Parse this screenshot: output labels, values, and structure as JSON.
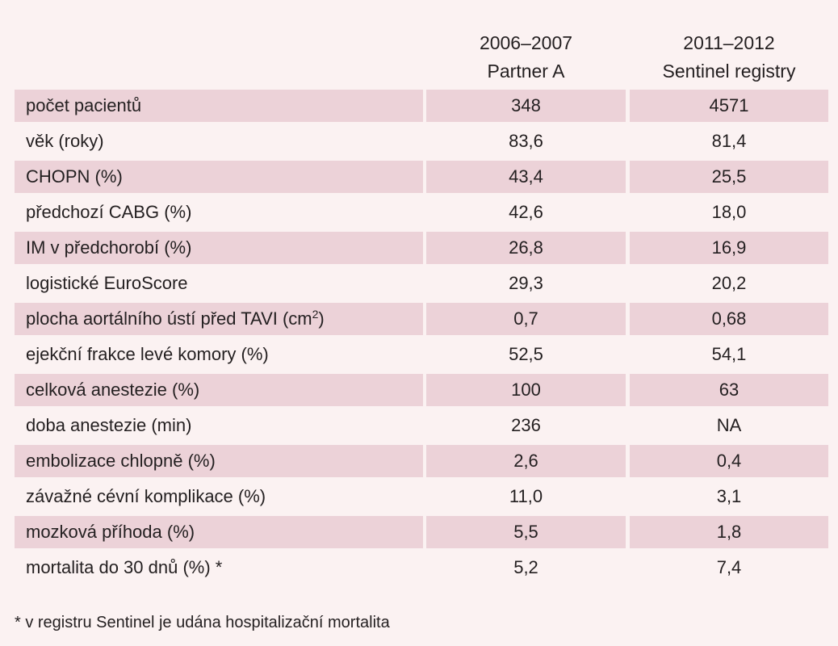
{
  "columns": {
    "a": {
      "line1": "2006–2007",
      "line2": "Partner A"
    },
    "b": {
      "line1": "2011–2012",
      "line2": "Sentinel registry"
    }
  },
  "rows": [
    {
      "label": "počet pacientů",
      "a": "348",
      "b": "4571",
      "shaded": true
    },
    {
      "label": "věk (roky)",
      "a": "83,6",
      "b": "81,4",
      "shaded": false
    },
    {
      "label": "CHOPN (%)",
      "a": "43,4",
      "b": "25,5",
      "shaded": true
    },
    {
      "label": "předchozí CABG (%)",
      "a": "42,6",
      "b": "18,0",
      "shaded": false
    },
    {
      "label": "IM v předchorobí (%)",
      "a": "26,8",
      "b": "16,9",
      "shaded": true
    },
    {
      "label": "logistické EuroScore",
      "a": "29,3",
      "b": "20,2",
      "shaded": false
    },
    {
      "label": "plocha aortálního ústí před TAVI (cm",
      "label_sup": "2",
      "label_tail": ")",
      "a": "0,7",
      "b": "0,68",
      "shaded": true
    },
    {
      "label": "ejekční frakce levé komory (%)",
      "a": "52,5",
      "b": "54,1",
      "shaded": false
    },
    {
      "label": "celková anestezie (%)",
      "a": "100",
      "b": "63",
      "shaded": true
    },
    {
      "label": "doba anestezie (min)",
      "a": "236",
      "b": "NA",
      "shaded": false
    },
    {
      "label": "embolizace chlopně (%)",
      "a": "2,6",
      "b": "0,4",
      "shaded": true
    },
    {
      "label": "závažné cévní komplikace (%)",
      "a": "11,0",
      "b": "3,1",
      "shaded": false
    },
    {
      "label": "mozková příhoda (%)",
      "a": "5,5",
      "b": "1,8",
      "shaded": true
    },
    {
      "label": "mortalita do 30 dnů (%) *",
      "a": "5,2",
      "b": "7,4",
      "shaded": false
    }
  ],
  "footnote": "* v registru Sentinel je udána hospitalizační mortalita",
  "colors": {
    "background": "#fbf2f2",
    "row_shade": "#ecd2d8",
    "text": "#231f20"
  }
}
